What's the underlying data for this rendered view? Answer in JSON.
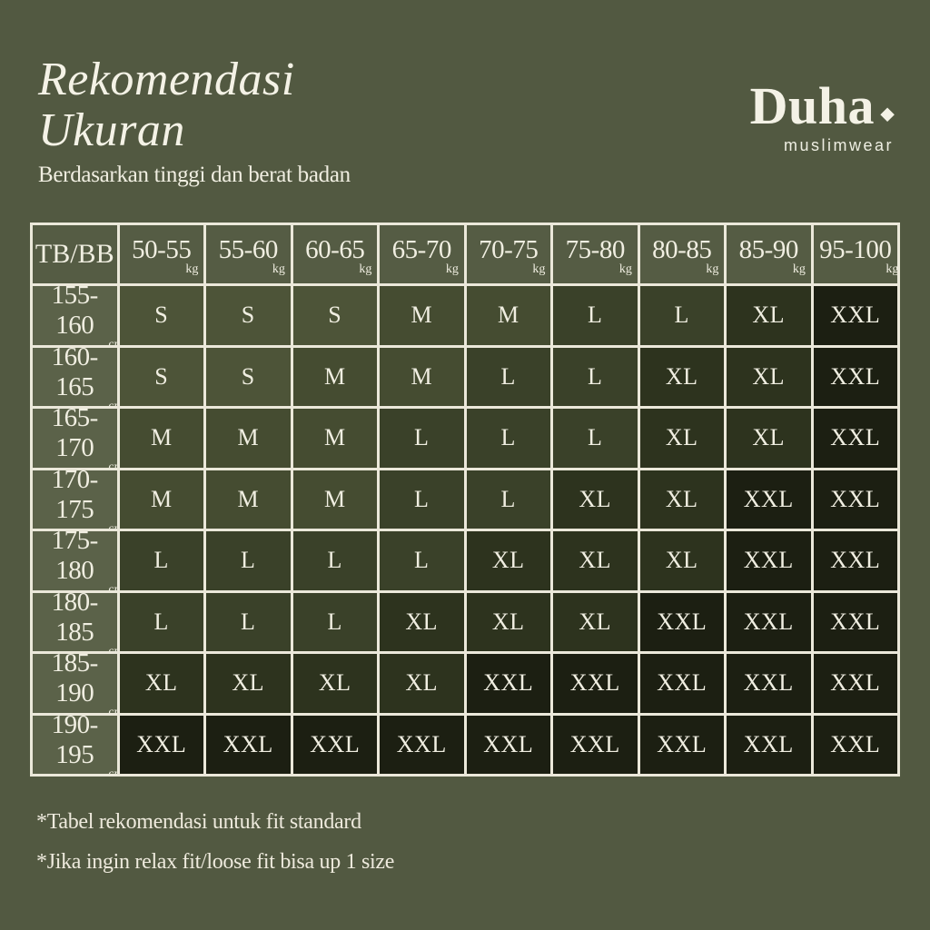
{
  "page": {
    "background": "#525941",
    "text_color": "#f0eee1",
    "grid_color": "#ebe8da"
  },
  "header": {
    "title_line1": "Rekomendasi",
    "title_line2": "Ukuran",
    "subtitle": "Berdasarkan tinggi dan berat badan"
  },
  "brand": {
    "name": "Duha",
    "tagline": "muslimwear"
  },
  "chart_data": {
    "type": "table",
    "title": "Rekomendasi Ukuran",
    "subtitle": "Berdasarkan tinggi dan berat badan",
    "corner_label": "TB/BB",
    "weight_unit": "kg",
    "height_unit": "cm",
    "columns_kg": [
      "50-55",
      "55-60",
      "60-65",
      "65-70",
      "70-75",
      "75-80",
      "80-85",
      "85-90",
      "95-100"
    ],
    "rows": [
      {
        "height_cm": "155-160",
        "sizes": [
          "S",
          "S",
          "S",
          "M",
          "M",
          "L",
          "L",
          "XL",
          "XXL"
        ]
      },
      {
        "height_cm": "160-165",
        "sizes": [
          "S",
          "S",
          "M",
          "M",
          "L",
          "L",
          "XL",
          "XL",
          "XXL"
        ]
      },
      {
        "height_cm": "165-170",
        "sizes": [
          "M",
          "M",
          "M",
          "L",
          "L",
          "L",
          "XL",
          "XL",
          "XXL"
        ]
      },
      {
        "height_cm": "170-175",
        "sizes": [
          "M",
          "M",
          "M",
          "L",
          "L",
          "XL",
          "XL",
          "XXL",
          "XXL"
        ]
      },
      {
        "height_cm": "175-180",
        "sizes": [
          "L",
          "L",
          "L",
          "L",
          "XL",
          "XL",
          "XL",
          "XXL",
          "XXL"
        ]
      },
      {
        "height_cm": "180-185",
        "sizes": [
          "L",
          "L",
          "L",
          "XL",
          "XL",
          "XL",
          "XXL",
          "XXL",
          "XXL"
        ]
      },
      {
        "height_cm": "185-190",
        "sizes": [
          "XL",
          "XL",
          "XL",
          "XL",
          "XXL",
          "XXL",
          "XXL",
          "XXL",
          "XXL"
        ]
      },
      {
        "height_cm": "190-195",
        "sizes": [
          "XXL",
          "XXL",
          "XXL",
          "XXL",
          "XXL",
          "XXL",
          "XXL",
          "XXL",
          "XXL"
        ]
      }
    ]
  },
  "table_style": {
    "header_cell_color": "#555c44",
    "row_header_color": "#5b6249",
    "size_colors": {
      "S": "#4d5438",
      "M": "#454c31",
      "L": "#3a4129",
      "XL": "#2d331e",
      "XXL": "#1c1f12"
    }
  },
  "footnotes": [
    "*Tabel rekomendasi untuk fit standard",
    "*Jika ingin relax fit/loose fit bisa up 1 size"
  ]
}
